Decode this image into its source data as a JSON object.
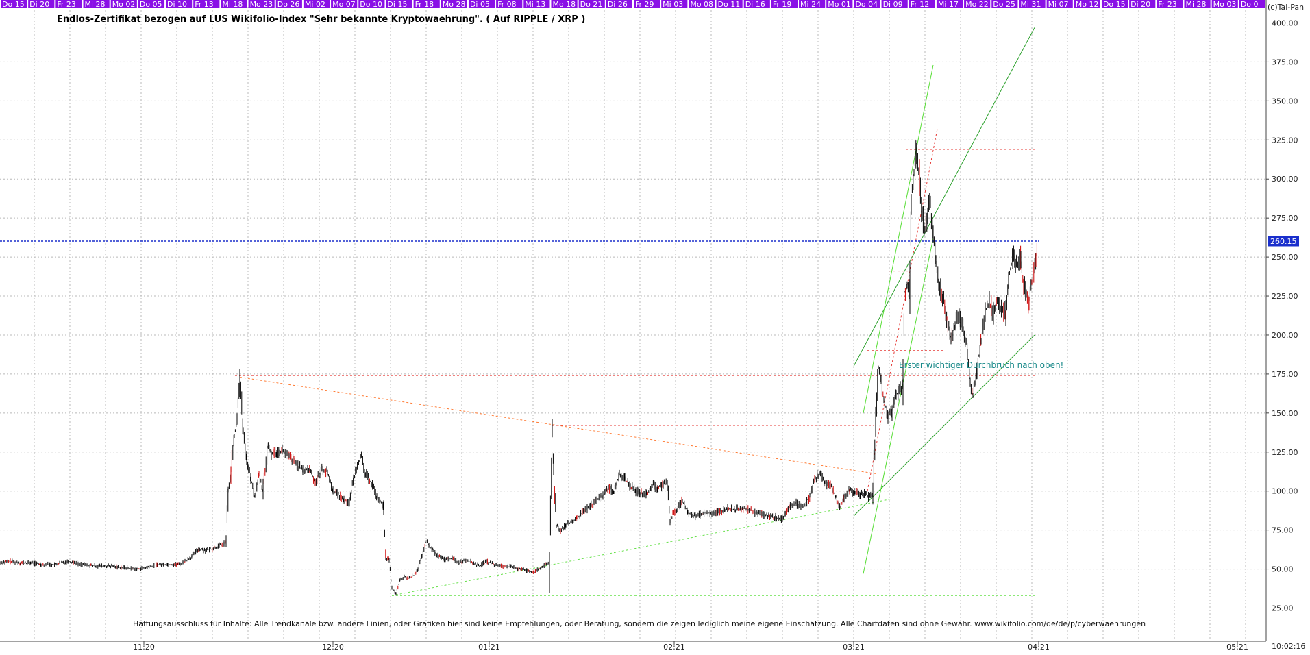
{
  "chart_data": {
    "type": "candlestick",
    "title": "Endlos-Zertifikat bezogen auf LUS Wikifolio-Index \"Sehr bekannte Kryptowaehrung\". ( Auf RIPPLE / XRP )",
    "copyright": "(c)Tai-Pan",
    "annotation": "Erster wichtiger Durchbruch nach oben!",
    "disclaimer": "Haftungsausschluss für Inhalte: Alle Trendkanäle bzw. andere Linien, oder Grafiken hier sind keine Empfehlungen, oder Beratung, sondern die zeigen lediglich meine eigene Einschätzung. Alle Chartdaten sind ohne Gewähr.  www.wikifolio.com/de/de/p/cyberwaehrungen",
    "current_value_label": "260.15",
    "current_value": 260.15,
    "time_label": "10:02:16",
    "y_axis": {
      "ylim": [
        18,
        417
      ],
      "ticks": [
        "25.00",
        "50.00",
        "75.00",
        "100.00",
        "125.00",
        "150.00",
        "175.00",
        "200.00",
        "225.00",
        "250.00",
        "275.00",
        "300.00",
        "325.00",
        "350.00",
        "375.00",
        "400.00"
      ]
    },
    "x_axis": {
      "month_labels": [
        "11:20",
        "12:20",
        "01:21",
        "02:21",
        "03:21",
        "04:21",
        "05:21"
      ]
    },
    "top_dates": [
      "Do 15",
      "Di 20",
      "Fr 23",
      "Mi 28",
      "Mo 02",
      "Do 05",
      "Di 10",
      "Fr 13",
      "Mi 18",
      "Mo 23",
      "Do 26",
      "Mi 02",
      "Mo 07",
      "Do 10",
      "Di 15",
      "Fr 18",
      "Mo 28",
      "Di 05",
      "Fr 08",
      "Mi 13",
      "Mo 18",
      "Do 21",
      "Di 26",
      "Fr 29",
      "Mi 03",
      "Mo 08",
      "Do 11",
      "Di 16",
      "Fr 19",
      "Mi 24",
      "Mo 01",
      "Do 04",
      "Di 09",
      "Fr 12",
      "Mi 17",
      "Mo 22",
      "Do 25",
      "Mi 31",
      "Mi 07",
      "Mo 12",
      "Do 15",
      "Di 20",
      "Fr 23",
      "Mi 28",
      "Mo 03",
      "Do 0"
    ],
    "price_path": [
      [
        0,
        54
      ],
      [
        15,
        55
      ],
      [
        30,
        54
      ],
      [
        45,
        54
      ],
      [
        60,
        53
      ],
      [
        80,
        53
      ],
      [
        100,
        55
      ],
      [
        120,
        53
      ],
      [
        140,
        52
      ],
      [
        160,
        52
      ],
      [
        180,
        51
      ],
      [
        200,
        50
      ],
      [
        215,
        51
      ],
      [
        230,
        53
      ],
      [
        245,
        53
      ],
      [
        260,
        53
      ],
      [
        270,
        55
      ],
      [
        280,
        58
      ],
      [
        290,
        63
      ],
      [
        300,
        62
      ],
      [
        310,
        63
      ],
      [
        320,
        65
      ],
      [
        330,
        67
      ],
      [
        333,
        100
      ],
      [
        337,
        112
      ],
      [
        342,
        135
      ],
      [
        346,
        145
      ],
      [
        350,
        173
      ],
      [
        355,
        140
      ],
      [
        360,
        120
      ],
      [
        366,
        108
      ],
      [
        372,
        96
      ],
      [
        378,
        110
      ],
      [
        384,
        100
      ],
      [
        390,
        128
      ],
      [
        396,
        124
      ],
      [
        404,
        125
      ],
      [
        412,
        126
      ],
      [
        422,
        122
      ],
      [
        432,
        118
      ],
      [
        442,
        113
      ],
      [
        452,
        114
      ],
      [
        460,
        106
      ],
      [
        470,
        114
      ],
      [
        478,
        112
      ],
      [
        486,
        100
      ],
      [
        494,
        98
      ],
      [
        502,
        94
      ],
      [
        510,
        93
      ],
      [
        516,
        108
      ],
      [
        522,
        118
      ],
      [
        528,
        122
      ],
      [
        532,
        112
      ],
      [
        538,
        108
      ],
      [
        544,
        104
      ],
      [
        550,
        96
      ],
      [
        555,
        93
      ],
      [
        560,
        90
      ],
      [
        563,
        57
      ],
      [
        568,
        56
      ],
      [
        572,
        38
      ],
      [
        578,
        34
      ],
      [
        584,
        43
      ],
      [
        590,
        45
      ],
      [
        596,
        44
      ],
      [
        604,
        46
      ],
      [
        610,
        50
      ],
      [
        616,
        58
      ],
      [
        622,
        68
      ],
      [
        626,
        65
      ],
      [
        632,
        62
      ],
      [
        640,
        58
      ],
      [
        650,
        56
      ],
      [
        660,
        57
      ],
      [
        670,
        54
      ],
      [
        680,
        56
      ],
      [
        690,
        54
      ],
      [
        700,
        52
      ],
      [
        710,
        55
      ],
      [
        720,
        53
      ],
      [
        730,
        52
      ],
      [
        740,
        52
      ],
      [
        750,
        51
      ],
      [
        760,
        50
      ],
      [
        770,
        49
      ],
      [
        780,
        48
      ],
      [
        790,
        51
      ],
      [
        796,
        53
      ],
      [
        802,
        54
      ],
      [
        806,
        140
      ],
      [
        808,
        112
      ],
      [
        812,
        78
      ],
      [
        818,
        75
      ],
      [
        826,
        78
      ],
      [
        834,
        80
      ],
      [
        842,
        82
      ],
      [
        850,
        86
      ],
      [
        860,
        90
      ],
      [
        870,
        94
      ],
      [
        880,
        97
      ],
      [
        888,
        102
      ],
      [
        896,
        100
      ],
      [
        904,
        110
      ],
      [
        912,
        108
      ],
      [
        920,
        103
      ],
      [
        928,
        100
      ],
      [
        936,
        99
      ],
      [
        944,
        98
      ],
      [
        952,
        104
      ],
      [
        960,
        102
      ],
      [
        968,
        104
      ],
      [
        974,
        106
      ],
      [
        978,
        80
      ],
      [
        982,
        85
      ],
      [
        988,
        88
      ],
      [
        996,
        94
      ],
      [
        1004,
        86
      ],
      [
        1012,
        84
      ],
      [
        1022,
        85
      ],
      [
        1032,
        86
      ],
      [
        1042,
        86
      ],
      [
        1052,
        87
      ],
      [
        1062,
        89
      ],
      [
        1072,
        88
      ],
      [
        1082,
        89
      ],
      [
        1092,
        88
      ],
      [
        1102,
        86
      ],
      [
        1112,
        85
      ],
      [
        1122,
        84
      ],
      [
        1132,
        83
      ],
      [
        1142,
        82
      ],
      [
        1152,
        90
      ],
      [
        1162,
        92
      ],
      [
        1172,
        90
      ],
      [
        1182,
        96
      ],
      [
        1190,
        108
      ],
      [
        1196,
        112
      ],
      [
        1204,
        105
      ],
      [
        1212,
        104
      ],
      [
        1220,
        96
      ],
      [
        1226,
        90
      ],
      [
        1232,
        96
      ],
      [
        1240,
        101
      ],
      [
        1248,
        99
      ],
      [
        1256,
        98
      ],
      [
        1262,
        99
      ],
      [
        1268,
        96
      ],
      [
        1274,
        98
      ],
      [
        1278,
        145
      ],
      [
        1282,
        180
      ],
      [
        1286,
        170
      ],
      [
        1290,
        160
      ],
      [
        1296,
        148
      ],
      [
        1302,
        150
      ],
      [
        1308,
        162
      ],
      [
        1314,
        165
      ],
      [
        1318,
        170
      ],
      [
        1320,
        228
      ],
      [
        1324,
        232
      ],
      [
        1328,
        230
      ],
      [
        1330,
        285
      ],
      [
        1334,
        305
      ],
      [
        1338,
        318
      ],
      [
        1342,
        300
      ],
      [
        1346,
        278
      ],
      [
        1350,
        268
      ],
      [
        1354,
        278
      ],
      [
        1358,
        285
      ],
      [
        1362,
        262
      ],
      [
        1366,
        250
      ],
      [
        1370,
        232
      ],
      [
        1376,
        225
      ],
      [
        1382,
        210
      ],
      [
        1388,
        198
      ],
      [
        1394,
        207
      ],
      [
        1400,
        212
      ],
      [
        1406,
        205
      ],
      [
        1412,
        190
      ],
      [
        1416,
        172
      ],
      [
        1420,
        160
      ],
      [
        1426,
        178
      ],
      [
        1432,
        196
      ],
      [
        1438,
        215
      ],
      [
        1444,
        222
      ],
      [
        1450,
        214
      ],
      [
        1456,
        222
      ],
      [
        1462,
        217
      ],
      [
        1468,
        214
      ],
      [
        1472,
        235
      ],
      [
        1478,
        250
      ],
      [
        1484,
        246
      ],
      [
        1490,
        250
      ],
      [
        1494,
        233
      ],
      [
        1498,
        226
      ],
      [
        1502,
        218
      ],
      [
        1506,
        235
      ],
      [
        1512,
        250
      ],
      [
        1514,
        260
      ]
    ],
    "lines": [
      {
        "kind": "support-green",
        "color": "#66e04a",
        "dashed": true,
        "from": [
          572,
          33
        ],
        "to": [
          1302,
          95
        ]
      },
      {
        "kind": "support-green",
        "color": "#66e04a",
        "dashed": true,
        "from": [
          572,
          33
        ],
        "to": [
          1510,
          33
        ]
      },
      {
        "kind": "channel-lower",
        "color": "#2aa02a",
        "dashed": false,
        "from": [
          1246,
          84
        ],
        "to": [
          1510,
          200
        ]
      },
      {
        "kind": "channel-upper",
        "color": "#2aa02a",
        "dashed": false,
        "from": [
          1246,
          180
        ],
        "to": [
          1510,
          397
        ]
      },
      {
        "kind": "steep-channel",
        "color": "#55dd33",
        "dashed": false,
        "from": [
          1260,
          150
        ],
        "to": [
          1362,
          373
        ]
      },
      {
        "kind": "steep-channel",
        "color": "#55dd33",
        "dashed": false,
        "from": [
          1260,
          47
        ],
        "to": [
          1362,
          262
        ]
      },
      {
        "kind": "resistance-orange",
        "color": "#ff7a33",
        "dashed": true,
        "from": [
          350,
          173
        ],
        "to": [
          1280,
          111
        ]
      },
      {
        "kind": "resistance-red",
        "color": "#e53935",
        "dashed": true,
        "from": [
          343,
          174
        ],
        "to": [
          1512,
          174
        ]
      },
      {
        "kind": "resistance-red",
        "color": "#e53935",
        "dashed": true,
        "from": [
          806,
          142
        ],
        "to": [
          1275,
          142
        ]
      },
      {
        "kind": "resistance-red",
        "color": "#e53935",
        "dashed": true,
        "from": [
          1266,
          190
        ],
        "to": [
          1380,
          190
        ]
      },
      {
        "kind": "resistance-red",
        "color": "#e53935",
        "dashed": true,
        "from": [
          1322,
          319
        ],
        "to": [
          1512,
          319
        ]
      },
      {
        "kind": "resistance-red",
        "color": "#e53935",
        "dashed": true,
        "from": [
          1266,
          100
        ],
        "to": [
          1368,
          332
        ]
      },
      {
        "kind": "resistance-red",
        "color": "#e53935",
        "dashed": true,
        "from": [
          1298,
          241
        ],
        "to": [
          1330,
          241
        ]
      },
      {
        "kind": "current-blue",
        "color": "#1a2fcc",
        "dashed": true,
        "from": [
          0,
          260.15
        ],
        "to": [
          1516,
          260.15
        ]
      }
    ],
    "colors": {
      "header_bar": "#8a10e6",
      "grid": "#b8b8b8",
      "candle": "#000000",
      "price_label_bg": "#1a2fcc",
      "annotation": "#1a8a8a",
      "bearish_wick": "#cc0000"
    },
    "grid": true
  }
}
